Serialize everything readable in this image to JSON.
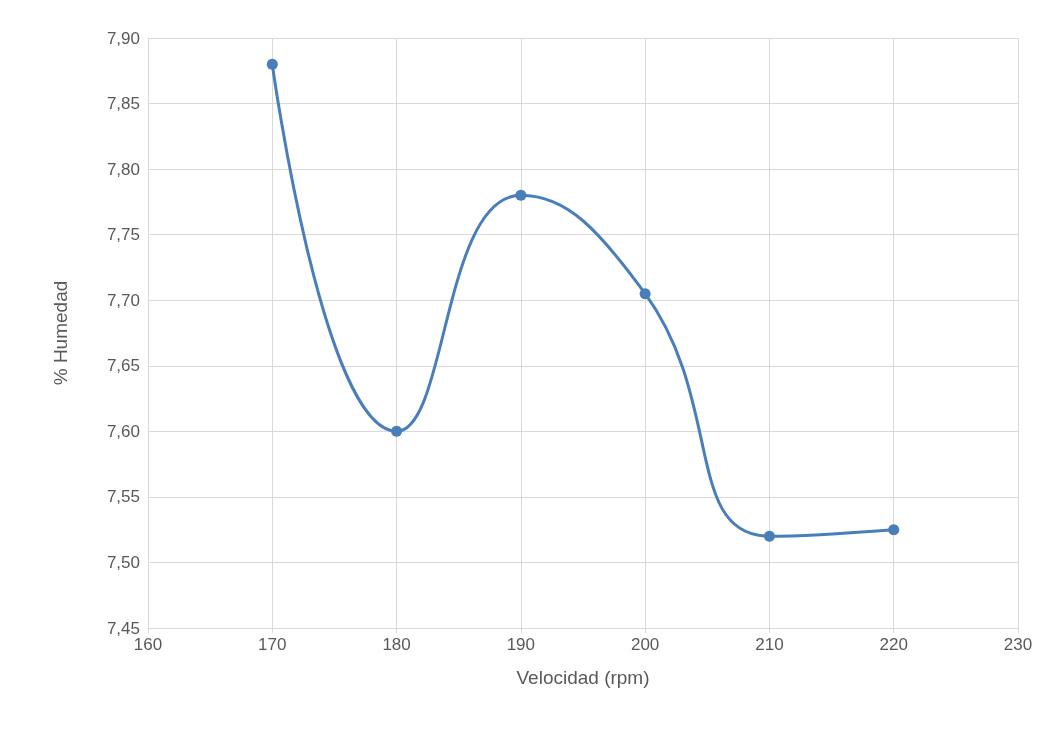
{
  "chart_data": {
    "type": "line",
    "xlabel": "Velocidad (rpm)",
    "ylabel": "% Humedad",
    "x": [
      170,
      180,
      190,
      200,
      210,
      220
    ],
    "series": [
      {
        "color": "#4a7ebb",
        "values": [
          7.88,
          7.6,
          7.78,
          7.705,
          7.52,
          7.525
        ]
      }
    ],
    "xlim": [
      160,
      230
    ],
    "xticks": [
      160,
      170,
      180,
      190,
      200,
      210,
      220,
      230
    ],
    "ylim": [
      7.45,
      7.9
    ],
    "yticks": [
      {
        "value": 7.45,
        "label": "7,45"
      },
      {
        "value": 7.5,
        "label": "7,50"
      },
      {
        "value": 7.55,
        "label": "7,55"
      },
      {
        "value": 7.6,
        "label": "7,60"
      },
      {
        "value": 7.65,
        "label": "7,65"
      },
      {
        "value": 7.7,
        "label": "7,70"
      },
      {
        "value": 7.75,
        "label": "7,75"
      },
      {
        "value": 7.8,
        "label": "7,80"
      },
      {
        "value": 7.85,
        "label": "7,85"
      },
      {
        "value": 7.9,
        "label": "7,90"
      }
    ],
    "grid": true,
    "marker": "circle",
    "line_style": "solid"
  }
}
